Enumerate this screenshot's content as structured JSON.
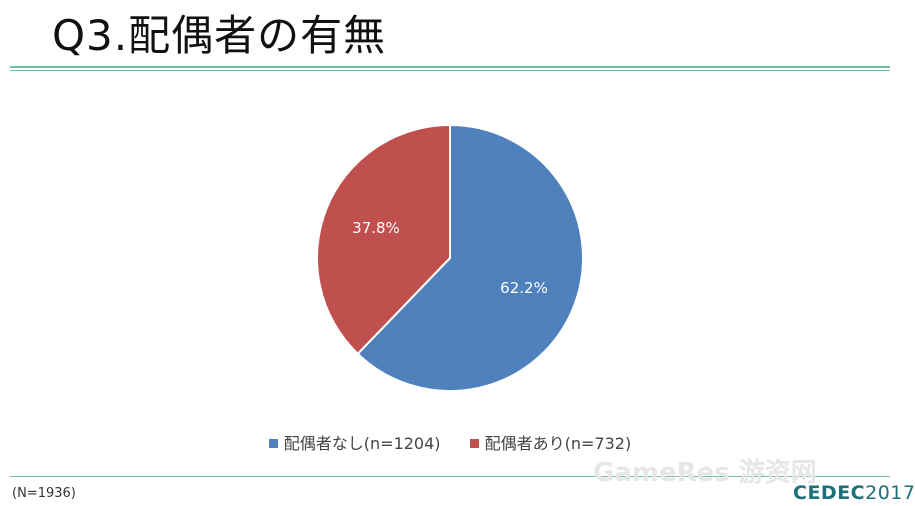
{
  "slide": {
    "title": "Q3.配偶者の有無",
    "note": "(N=1936)",
    "watermark": "GameRes 游资网",
    "logo": {
      "brand": "CEDEC",
      "year": "2017"
    }
  },
  "colors": {
    "series_blue": "#4f81bd",
    "series_red": "#c0504d",
    "rule": "#6fbfa0",
    "logo": "#1d6f7a"
  },
  "chart_data": {
    "type": "pie",
    "title": "",
    "slices": [
      {
        "label": "配偶者なし(n=1204)",
        "value": 62.2,
        "display": "62.2%",
        "color": "#4f81bd"
      },
      {
        "label": "配偶者あり(n=732)",
        "value": 37.8,
        "display": "37.8%",
        "color": "#c0504d"
      }
    ],
    "legend": "bottom"
  }
}
